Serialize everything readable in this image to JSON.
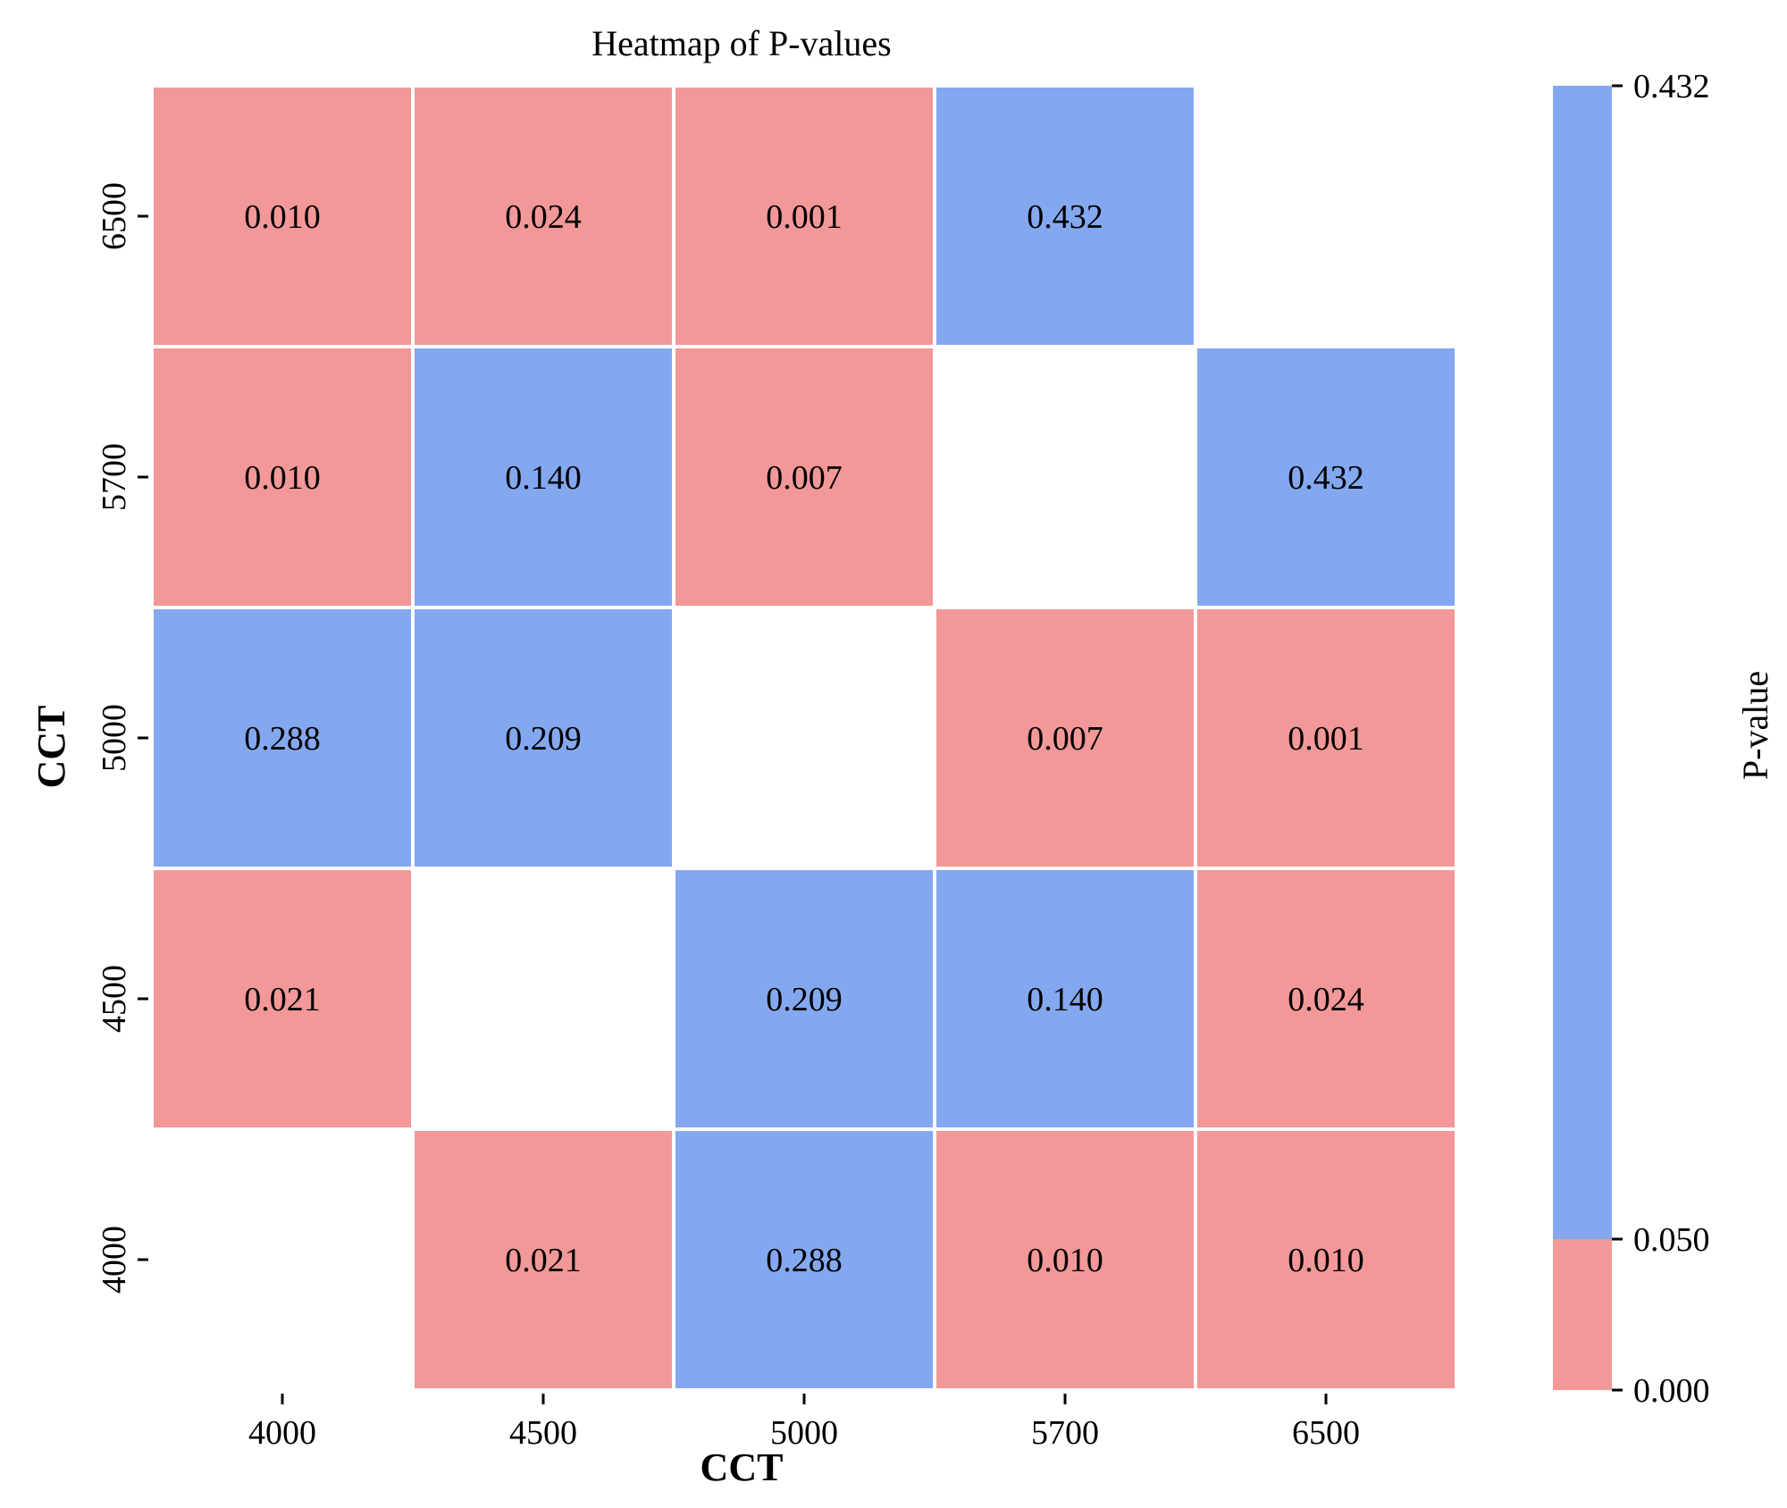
{
  "chart_data": {
    "type": "heatmap",
    "title": "Heatmap of P-values",
    "xlabel": "CCT",
    "ylabel": "CCT",
    "x_categories": [
      "4000",
      "4500",
      "5000",
      "5700",
      "6500"
    ],
    "y_categories": [
      "6500",
      "5700",
      "5000",
      "4500",
      "4000"
    ],
    "values": [
      [
        0.01,
        0.024,
        0.001,
        0.432,
        null
      ],
      [
        0.01,
        0.14,
        0.007,
        null,
        0.432
      ],
      [
        0.288,
        0.209,
        null,
        0.007,
        0.001
      ],
      [
        0.021,
        null,
        0.209,
        0.14,
        0.024
      ],
      [
        null,
        0.021,
        0.288,
        0.01,
        0.01
      ]
    ],
    "threshold": 0.05,
    "colors": {
      "below_threshold": "#F29898",
      "above_threshold": "#84A8F0",
      "cell_border": "#ffffff"
    },
    "colorbar": {
      "label": "P-value",
      "min": 0.0,
      "max": 0.432,
      "ticks": [
        {
          "value": 0.432,
          "label": "0.432"
        },
        {
          "value": 0.05,
          "label": "0.050"
        },
        {
          "value": 0.0,
          "label": "0.000"
        }
      ]
    }
  }
}
